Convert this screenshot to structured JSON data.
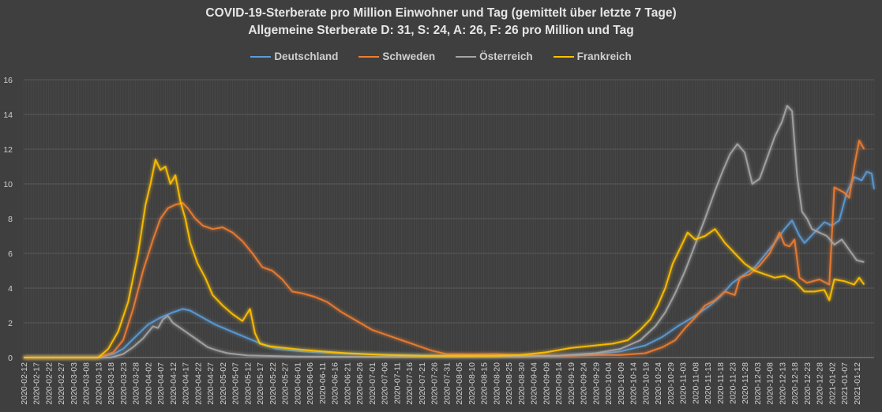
{
  "chart_data": {
    "type": "line",
    "title": "COVID-19-Sterberate pro Million Einwohner und Tag (gemittelt über letzte 7 Tage)",
    "subtitle": "Allgemeine Sterberate D: 31, S: 24, A: 26, F: 26 pro Million und Tag",
    "xlabel": "",
    "ylabel": "",
    "ylim": [
      0,
      16
    ],
    "yticks": [
      0,
      2,
      4,
      6,
      8,
      10,
      12,
      14,
      16
    ],
    "x_start": "2020-02-12",
    "x_end": "2021-01-17",
    "x_tick_step_days": 5,
    "x_tick_labels": [
      "2020-02-12",
      "2020-02-17",
      "2020-02-22",
      "2020-02-27",
      "2020-03-03",
      "2020-03-08",
      "2020-03-13",
      "2020-03-18",
      "2020-03-23",
      "2020-03-28",
      "2020-04-02",
      "2020-04-07",
      "2020-04-12",
      "2020-04-17",
      "2020-04-22",
      "2020-04-27",
      "2020-05-02",
      "2020-05-07",
      "2020-05-12",
      "2020-05-17",
      "2020-05-22",
      "2020-05-27",
      "2020-06-01",
      "2020-06-06",
      "2020-06-11",
      "2020-06-16",
      "2020-06-21",
      "2020-06-26",
      "2020-07-01",
      "2020-07-06",
      "2020-07-11",
      "2020-07-16",
      "2020-07-21",
      "2020-07-26",
      "2020-07-31",
      "2020-08-05",
      "2020-08-10",
      "2020-08-15",
      "2020-08-20",
      "2020-08-25",
      "2020-08-30",
      "2020-09-04",
      "2020-09-09",
      "2020-09-14",
      "2020-09-19",
      "2020-09-24",
      "2020-09-29",
      "2020-10-04",
      "2020-10-09",
      "2020-10-14",
      "2020-10-19",
      "2020-10-24",
      "2020-10-29",
      "2020-11-03",
      "2020-11-08",
      "2020-11-13",
      "2020-11-18",
      "2020-11-23",
      "2020-11-28",
      "2020-12-03",
      "2020-12-08",
      "2020-12-13",
      "2020-12-18",
      "2020-12-23",
      "2020-12-28",
      "2021-01-02",
      "2021-01-07",
      "2021-01-12"
    ],
    "grid": true,
    "legend_position": "top-center",
    "series": [
      {
        "name": "Deutschland",
        "color": "#5b9bd5",
        "points": [
          [
            0,
            0
          ],
          [
            30,
            0
          ],
          [
            36,
            0.2
          ],
          [
            40,
            0.5
          ],
          [
            45,
            1.2
          ],
          [
            50,
            1.9
          ],
          [
            55,
            2.3
          ],
          [
            60,
            2.6
          ],
          [
            64,
            2.8
          ],
          [
            67,
            2.7
          ],
          [
            72,
            2.3
          ],
          [
            77,
            1.9
          ],
          [
            82,
            1.6
          ],
          [
            87,
            1.3
          ],
          [
            92,
            1.0
          ],
          [
            97,
            0.7
          ],
          [
            102,
            0.5
          ],
          [
            112,
            0.35
          ],
          [
            125,
            0.25
          ],
          [
            140,
            0.18
          ],
          [
            160,
            0.12
          ],
          [
            180,
            0.08
          ],
          [
            200,
            0.08
          ],
          [
            215,
            0.1
          ],
          [
            230,
            0.2
          ],
          [
            240,
            0.35
          ],
          [
            250,
            0.7
          ],
          [
            257,
            1.2
          ],
          [
            263,
            1.8
          ],
          [
            270,
            2.4
          ],
          [
            276,
            3.0
          ],
          [
            280,
            3.5
          ],
          [
            285,
            4.3
          ],
          [
            290,
            4.8
          ],
          [
            294,
            5.2
          ],
          [
            298,
            5.9
          ],
          [
            302,
            6.6
          ],
          [
            306,
            7.4
          ],
          [
            309,
            7.9
          ],
          [
            312,
            7.0
          ],
          [
            314,
            6.6
          ],
          [
            318,
            7.2
          ],
          [
            322,
            7.8
          ],
          [
            325,
            7.6
          ],
          [
            328,
            7.9
          ],
          [
            331,
            9.5
          ],
          [
            334,
            10.4
          ],
          [
            337,
            10.2
          ],
          [
            339,
            10.7
          ],
          [
            341,
            10.6
          ],
          [
            342,
            9.7
          ]
        ]
      },
      {
        "name": "Schweden",
        "color": "#ed7d31",
        "points": [
          [
            0,
            0
          ],
          [
            30,
            0
          ],
          [
            36,
            0.3
          ],
          [
            40,
            1.0
          ],
          [
            44,
            2.8
          ],
          [
            48,
            5.0
          ],
          [
            52,
            6.8
          ],
          [
            55,
            8.0
          ],
          [
            58,
            8.6
          ],
          [
            61,
            8.8
          ],
          [
            64,
            8.9
          ],
          [
            66,
            8.6
          ],
          [
            69,
            8.0
          ],
          [
            72,
            7.6
          ],
          [
            76,
            7.4
          ],
          [
            80,
            7.5
          ],
          [
            84,
            7.2
          ],
          [
            88,
            6.7
          ],
          [
            92,
            6.0
          ],
          [
            96,
            5.2
          ],
          [
            100,
            5.0
          ],
          [
            104,
            4.5
          ],
          [
            108,
            3.8
          ],
          [
            112,
            3.7
          ],
          [
            117,
            3.5
          ],
          [
            122,
            3.2
          ],
          [
            128,
            2.6
          ],
          [
            134,
            2.1
          ],
          [
            140,
            1.6
          ],
          [
            146,
            1.3
          ],
          [
            152,
            1.0
          ],
          [
            158,
            0.7
          ],
          [
            164,
            0.4
          ],
          [
            170,
            0.2
          ],
          [
            180,
            0.18
          ],
          [
            190,
            0.2
          ],
          [
            200,
            0.12
          ],
          [
            210,
            0.1
          ],
          [
            220,
            0.1
          ],
          [
            230,
            0.15
          ],
          [
            240,
            0.15
          ],
          [
            250,
            0.25
          ],
          [
            257,
            0.6
          ],
          [
            262,
            1.0
          ],
          [
            266,
            1.7
          ],
          [
            270,
            2.3
          ],
          [
            274,
            3.0
          ],
          [
            278,
            3.3
          ],
          [
            282,
            3.8
          ],
          [
            286,
            3.6
          ],
          [
            288,
            4.6
          ],
          [
            292,
            4.8
          ],
          [
            296,
            5.3
          ],
          [
            300,
            6.0
          ],
          [
            304,
            7.2
          ],
          [
            306,
            6.5
          ],
          [
            308,
            6.4
          ],
          [
            310,
            6.8
          ],
          [
            312,
            4.6
          ],
          [
            315,
            4.3
          ],
          [
            320,
            4.5
          ],
          [
            324,
            4.2
          ],
          [
            326,
            9.8
          ],
          [
            330,
            9.5
          ],
          [
            332,
            9.2
          ],
          [
            334,
            11.0
          ],
          [
            336,
            12.5
          ],
          [
            338,
            12.0
          ]
        ]
      },
      {
        "name": "Österreich",
        "color": "#a5a5a5",
        "points": [
          [
            0,
            0
          ],
          [
            35,
            0
          ],
          [
            40,
            0.2
          ],
          [
            44,
            0.6
          ],
          [
            48,
            1.1
          ],
          [
            52,
            1.8
          ],
          [
            54,
            1.7
          ],
          [
            56,
            2.2
          ],
          [
            58,
            2.4
          ],
          [
            60,
            2.0
          ],
          [
            63,
            1.7
          ],
          [
            66,
            1.4
          ],
          [
            70,
            1.0
          ],
          [
            74,
            0.6
          ],
          [
            78,
            0.4
          ],
          [
            82,
            0.25
          ],
          [
            90,
            0.12
          ],
          [
            110,
            0.06
          ],
          [
            140,
            0.04
          ],
          [
            170,
            0.04
          ],
          [
            200,
            0.08
          ],
          [
            215,
            0.1
          ],
          [
            230,
            0.25
          ],
          [
            240,
            0.5
          ],
          [
            248,
            1.0
          ],
          [
            254,
            1.8
          ],
          [
            258,
            2.6
          ],
          [
            262,
            3.7
          ],
          [
            266,
            5.0
          ],
          [
            270,
            6.5
          ],
          [
            274,
            8.0
          ],
          [
            278,
            9.6
          ],
          [
            281,
            10.7
          ],
          [
            284,
            11.7
          ],
          [
            287,
            12.3
          ],
          [
            290,
            11.8
          ],
          [
            293,
            10.0
          ],
          [
            296,
            10.3
          ],
          [
            299,
            11.5
          ],
          [
            302,
            12.7
          ],
          [
            305,
            13.6
          ],
          [
            307,
            14.5
          ],
          [
            309,
            14.2
          ],
          [
            311,
            10.5
          ],
          [
            313,
            8.4
          ],
          [
            315,
            8.0
          ],
          [
            317,
            7.4
          ],
          [
            320,
            7.2
          ],
          [
            323,
            7.0
          ],
          [
            326,
            6.5
          ],
          [
            329,
            6.8
          ],
          [
            332,
            6.2
          ],
          [
            335,
            5.6
          ],
          [
            338,
            5.5
          ]
        ]
      },
      {
        "name": "Frankreich",
        "color": "#ffc000",
        "points": [
          [
            0,
            0
          ],
          [
            30,
            0
          ],
          [
            34,
            0.5
          ],
          [
            38,
            1.5
          ],
          [
            42,
            3.2
          ],
          [
            46,
            6.0
          ],
          [
            49,
            8.8
          ],
          [
            51,
            10.0
          ],
          [
            53,
            11.4
          ],
          [
            55,
            10.8
          ],
          [
            57,
            11.0
          ],
          [
            59,
            10.0
          ],
          [
            61,
            10.5
          ],
          [
            63,
            9.0
          ],
          [
            65,
            8.0
          ],
          [
            67,
            6.6
          ],
          [
            70,
            5.4
          ],
          [
            73,
            4.6
          ],
          [
            76,
            3.6
          ],
          [
            80,
            3.0
          ],
          [
            84,
            2.5
          ],
          [
            88,
            2.1
          ],
          [
            91,
            2.8
          ],
          [
            93,
            1.4
          ],
          [
            95,
            0.8
          ],
          [
            99,
            0.65
          ],
          [
            105,
            0.55
          ],
          [
            112,
            0.45
          ],
          [
            120,
            0.35
          ],
          [
            130,
            0.25
          ],
          [
            145,
            0.15
          ],
          [
            160,
            0.1
          ],
          [
            175,
            0.1
          ],
          [
            190,
            0.1
          ],
          [
            200,
            0.15
          ],
          [
            210,
            0.3
          ],
          [
            220,
            0.55
          ],
          [
            230,
            0.7
          ],
          [
            237,
            0.8
          ],
          [
            243,
            1.0
          ],
          [
            248,
            1.6
          ],
          [
            252,
            2.2
          ],
          [
            255,
            3.0
          ],
          [
            258,
            4.0
          ],
          [
            261,
            5.4
          ],
          [
            264,
            6.3
          ],
          [
            267,
            7.2
          ],
          [
            270,
            6.8
          ],
          [
            274,
            7.0
          ],
          [
            278,
            7.4
          ],
          [
            282,
            6.6
          ],
          [
            286,
            6.0
          ],
          [
            290,
            5.4
          ],
          [
            294,
            5.0
          ],
          [
            298,
            4.8
          ],
          [
            302,
            4.6
          ],
          [
            306,
            4.7
          ],
          [
            310,
            4.4
          ],
          [
            314,
            3.8
          ],
          [
            318,
            3.8
          ],
          [
            322,
            3.9
          ],
          [
            324,
            3.3
          ],
          [
            326,
            4.5
          ],
          [
            330,
            4.4
          ],
          [
            334,
            4.2
          ],
          [
            336,
            4.6
          ],
          [
            338,
            4.2
          ]
        ]
      }
    ]
  }
}
